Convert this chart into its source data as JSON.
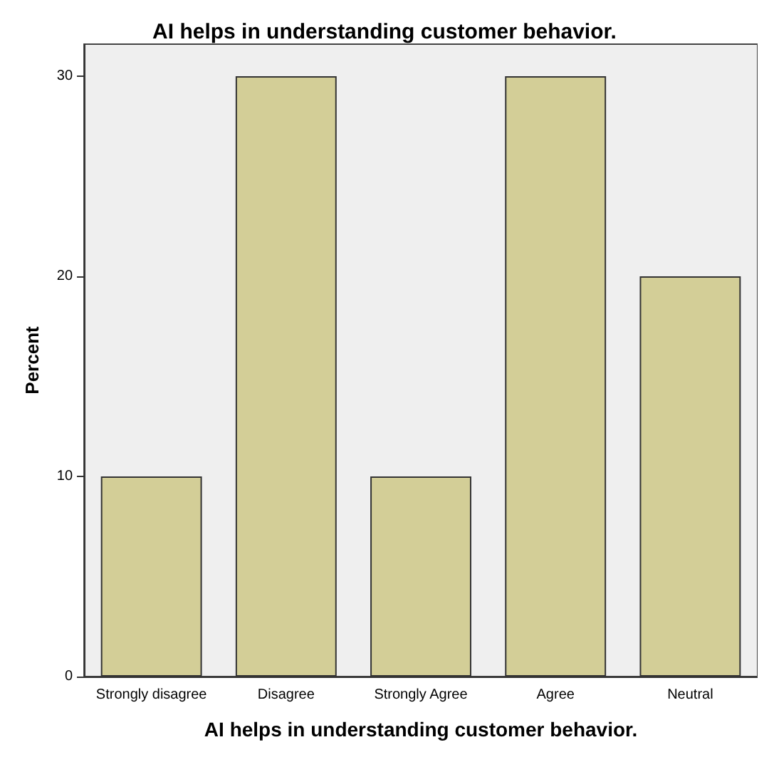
{
  "chart_data": {
    "type": "bar",
    "title": "AI helps in understanding customer behavior.",
    "xlabel": "AI helps in understanding customer behavior.",
    "ylabel": "Percent",
    "categories": [
      "Strongly disagree",
      "Disagree",
      "Strongly Agree",
      "Agree",
      "Neutral"
    ],
    "values": [
      10,
      30,
      10,
      30,
      20
    ],
    "color": "#d3ce97",
    "ylim": [
      0,
      31.6
    ],
    "yticks": [
      0,
      10,
      20,
      30
    ],
    "grid": false
  }
}
